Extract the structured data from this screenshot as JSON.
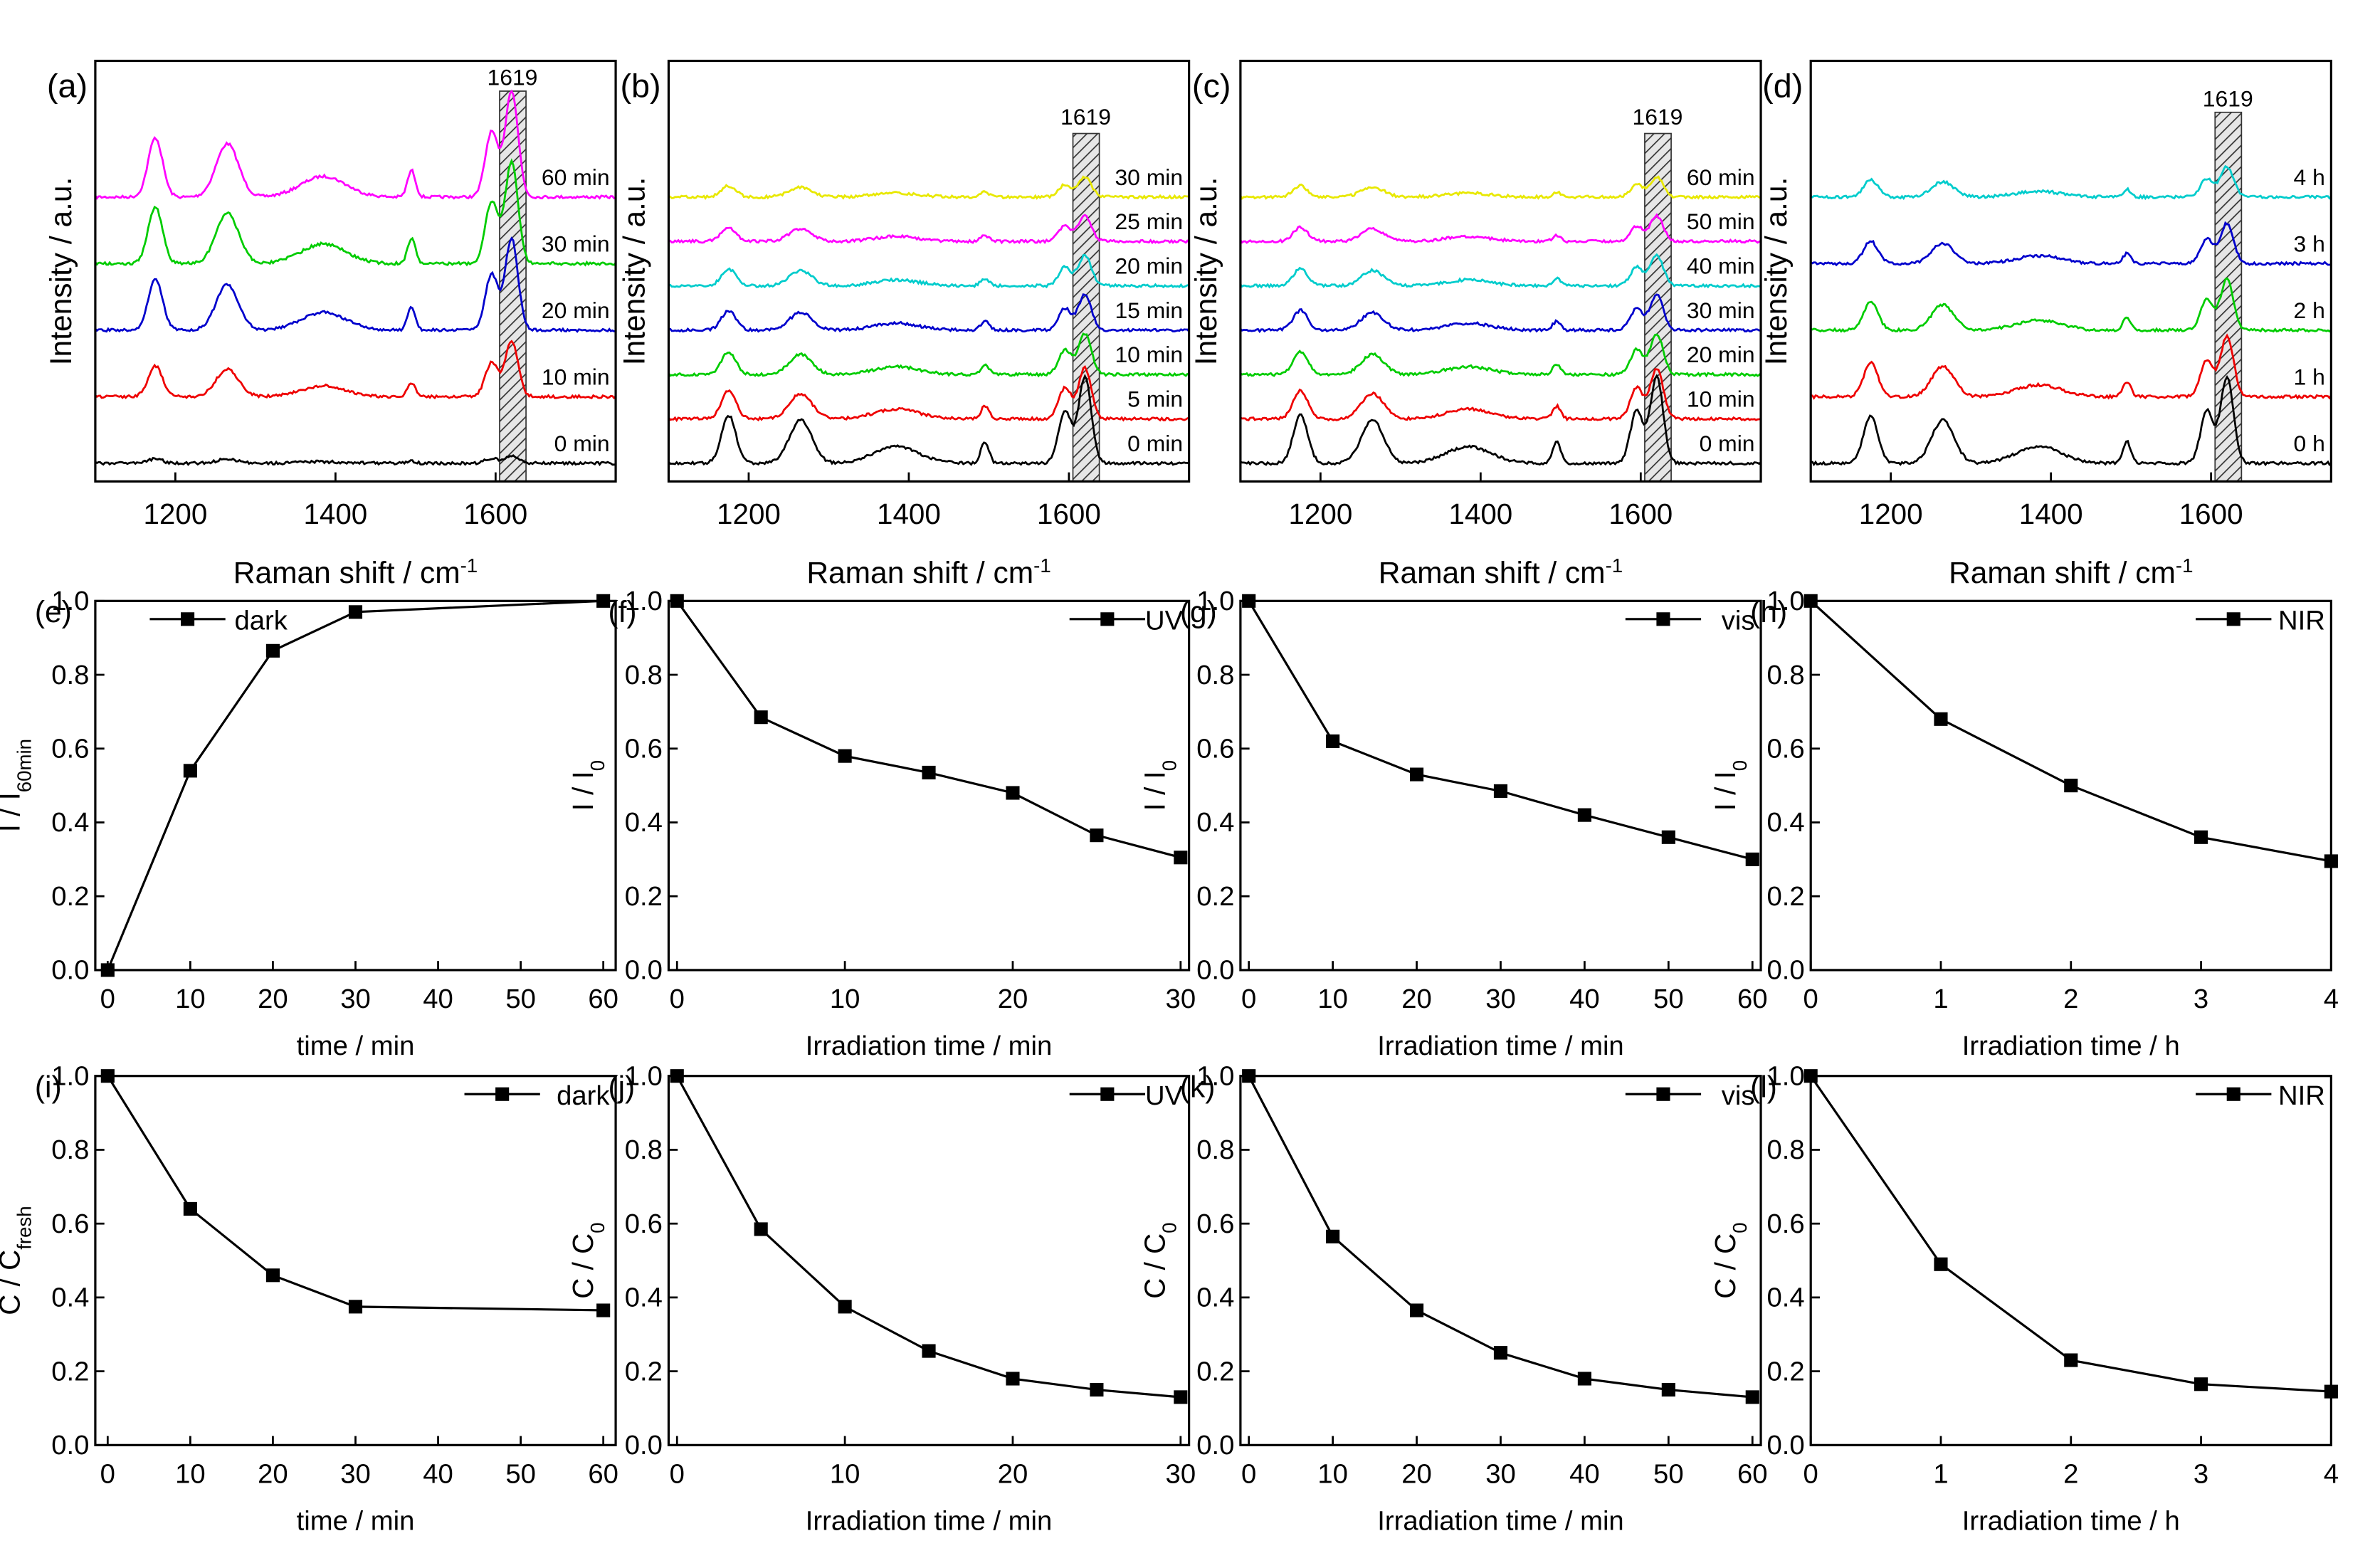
{
  "figure": {
    "raman_panels": [
      {
        "label": "(a)",
        "peak_label": "1619",
        "xlabel": "Raman shift / cm",
        "xlabel_sup": "-1",
        "ylabel": "Intensity / a.u.",
        "xlim": [
          1100,
          1750
        ],
        "xticks": [
          "1200",
          "1400",
          "1600"
        ],
        "curves": [
          {
            "label": "60 min",
            "color": "#ff00ff",
            "peak_scale": 1.0
          },
          {
            "label": "30 min",
            "color": "#00cc00",
            "peak_scale": 0.95
          },
          {
            "label": "20 min",
            "color": "#0000cc",
            "peak_scale": 0.85
          },
          {
            "label": "10 min",
            "color": "#ee0000",
            "peak_scale": 0.5
          },
          {
            "label": "0 min",
            "color": "#000000",
            "peak_scale": 0.03
          }
        ]
      },
      {
        "label": "(b)",
        "peak_label": "1619",
        "xlabel": "Raman shift / cm",
        "xlabel_sup": "-1",
        "ylabel": "Intensity / a.u.",
        "xlim": [
          1100,
          1750
        ],
        "xticks": [
          "1200",
          "1400",
          "1600"
        ],
        "curves": [
          {
            "label": "30 min",
            "color": "#e8e800",
            "peak_scale": 0.15
          },
          {
            "label": "25 min",
            "color": "#ff00ff",
            "peak_scale": 0.2
          },
          {
            "label": "20 min",
            "color": "#00cccc",
            "peak_scale": 0.25
          },
          {
            "label": "15 min",
            "color": "#0000cc",
            "peak_scale": 0.3
          },
          {
            "label": "10 min",
            "color": "#00cc00",
            "peak_scale": 0.35
          },
          {
            "label": "5 min",
            "color": "#ee0000",
            "peak_scale": 0.45
          },
          {
            "label": "0 min",
            "color": "#000000",
            "peak_scale": 0.8
          }
        ]
      },
      {
        "label": "(c)",
        "peak_label": "1619",
        "xlabel": "Raman shift / cm",
        "xlabel_sup": "-1",
        "ylabel": "Intensity / a.u.",
        "xlim": [
          1100,
          1750
        ],
        "xticks": [
          "1200",
          "1400",
          "1600"
        ],
        "curves": [
          {
            "label": "60 min",
            "color": "#e8e800",
            "peak_scale": 0.15
          },
          {
            "label": "50 min",
            "color": "#ff00ff",
            "peak_scale": 0.2
          },
          {
            "label": "40 min",
            "color": "#00cccc",
            "peak_scale": 0.25
          },
          {
            "label": "30 min",
            "color": "#0000cc",
            "peak_scale": 0.3
          },
          {
            "label": "20 min",
            "color": "#00cc00",
            "peak_scale": 0.35
          },
          {
            "label": "10 min",
            "color": "#ee0000",
            "peak_scale": 0.45
          },
          {
            "label": "0 min",
            "color": "#000000",
            "peak_scale": 0.8
          }
        ]
      },
      {
        "label": "(d)",
        "peak_label": "1619",
        "xlabel": "Raman shift / cm",
        "xlabel_sup": "-1",
        "ylabel": "Intensity / a.u.",
        "xlim": [
          1100,
          1750
        ],
        "xticks": [
          "1200",
          "1400",
          "1600"
        ],
        "curves": [
          {
            "label": "4 h",
            "color": "#00cccc",
            "peak_scale": 0.25
          },
          {
            "label": "3 h",
            "color": "#0000cc",
            "peak_scale": 0.35
          },
          {
            "label": "2 h",
            "color": "#00cc00",
            "peak_scale": 0.45
          },
          {
            "label": "1 h",
            "color": "#ee0000",
            "peak_scale": 0.55
          },
          {
            "label": "0 h",
            "color": "#000000",
            "peak_scale": 0.8
          }
        ]
      }
    ]
  },
  "chart_data": [
    {
      "type": "line",
      "panel": "(e)",
      "legend": "dark",
      "x": [
        0,
        10,
        20,
        30,
        60
      ],
      "y": [
        0.0,
        0.54,
        0.865,
        0.97,
        1.0
      ],
      "xticks": [
        "0",
        "10",
        "20",
        "30",
        "40",
        "50",
        "60"
      ],
      "xlim": [
        -1.5,
        61.5
      ],
      "ylim": [
        0,
        1.0
      ],
      "yticks": [
        "0.0",
        "0.2",
        "0.4",
        "0.6",
        "0.8",
        "1.0"
      ],
      "xlabel": "time / min",
      "ylabel": "I / I",
      "ylabel_sub": "60min"
    },
    {
      "type": "line",
      "panel": "(f)",
      "legend": "UV",
      "x": [
        0,
        5,
        10,
        15,
        20,
        25,
        30
      ],
      "y": [
        1.0,
        0.685,
        0.58,
        0.535,
        0.48,
        0.365,
        0.305
      ],
      "xticks": [
        "0",
        "10",
        "20",
        "30"
      ],
      "xlim": [
        -0.5,
        30.5
      ],
      "ylim": [
        0,
        1.0
      ],
      "yticks": [
        "0.0",
        "0.2",
        "0.4",
        "0.6",
        "0.8",
        "1.0"
      ],
      "xlabel": "Irradiation time / min",
      "ylabel": "I / I",
      "ylabel_sub": "0"
    },
    {
      "type": "line",
      "panel": "(g)",
      "legend": "vis",
      "x": [
        0,
        10,
        20,
        30,
        40,
        50,
        60
      ],
      "y": [
        1.0,
        0.62,
        0.53,
        0.485,
        0.42,
        0.36,
        0.3
      ],
      "xticks": [
        "0",
        "10",
        "20",
        "30",
        "40",
        "50",
        "60"
      ],
      "xlim": [
        -1,
        61
      ],
      "ylim": [
        0,
        1.0
      ],
      "yticks": [
        "0.0",
        "0.2",
        "0.4",
        "0.6",
        "0.8",
        "1.0"
      ],
      "xlabel": "Irradiation time / min",
      "ylabel": "I / I",
      "ylabel_sub": "0"
    },
    {
      "type": "line",
      "panel": "(h)",
      "legend": "NIR",
      "x": [
        0,
        1,
        2,
        3,
        4
      ],
      "y": [
        1.0,
        0.68,
        0.5,
        0.36,
        0.295
      ],
      "xticks": [
        "0",
        "1",
        "2",
        "3",
        "4"
      ],
      "xlim": [
        0,
        4
      ],
      "ylim": [
        0,
        1.0
      ],
      "yticks": [
        "0.0",
        "0.2",
        "0.4",
        "0.6",
        "0.8",
        "1.0"
      ],
      "xlabel": "Irradiation time / h",
      "ylabel": "I / I",
      "ylabel_sub": "0"
    },
    {
      "type": "line",
      "panel": "(i)",
      "legend": "dark",
      "x": [
        0,
        10,
        20,
        30,
        60
      ],
      "y": [
        1.0,
        0.64,
        0.46,
        0.375,
        0.365
      ],
      "xticks": [
        "0",
        "10",
        "20",
        "30",
        "40",
        "50",
        "60"
      ],
      "xlim": [
        -1.5,
        61.5
      ],
      "ylim": [
        0,
        1.0
      ],
      "yticks": [
        "0.0",
        "0.2",
        "0.4",
        "0.6",
        "0.8",
        "1.0"
      ],
      "xlabel": "time / min",
      "ylabel": "C / C",
      "ylabel_sub": "fresh"
    },
    {
      "type": "line",
      "panel": "(j)",
      "legend": "UV",
      "x": [
        0,
        5,
        10,
        15,
        20,
        25,
        30
      ],
      "y": [
        1.0,
        0.585,
        0.375,
        0.255,
        0.18,
        0.15,
        0.13
      ],
      "xticks": [
        "0",
        "10",
        "20",
        "30"
      ],
      "xlim": [
        -0.5,
        30.5
      ],
      "ylim": [
        0,
        1.0
      ],
      "yticks": [
        "0.0",
        "0.2",
        "0.4",
        "0.6",
        "0.8",
        "1.0"
      ],
      "xlabel": "Irradiation time / min",
      "ylabel": "C / C",
      "ylabel_sub": "0"
    },
    {
      "type": "line",
      "panel": "(k)",
      "legend": "vis",
      "x": [
        0,
        10,
        20,
        30,
        40,
        50,
        60
      ],
      "y": [
        1.0,
        0.565,
        0.365,
        0.25,
        0.18,
        0.15,
        0.13
      ],
      "xticks": [
        "0",
        "10",
        "20",
        "30",
        "40",
        "50",
        "60"
      ],
      "xlim": [
        -1,
        61
      ],
      "ylim": [
        0,
        1.0
      ],
      "yticks": [
        "0.0",
        "0.2",
        "0.4",
        "0.6",
        "0.8",
        "1.0"
      ],
      "xlabel": "Irradiation time / min",
      "ylabel": "C / C",
      "ylabel_sub": "0"
    },
    {
      "type": "line",
      "panel": "(l)",
      "legend": "NIR",
      "x": [
        0,
        1,
        2,
        3,
        4
      ],
      "y": [
        1.0,
        0.49,
        0.23,
        0.165,
        0.145
      ],
      "xticks": [
        "0",
        "1",
        "2",
        "3",
        "4"
      ],
      "xlim": [
        0,
        4
      ],
      "ylim": [
        0,
        1.0
      ],
      "yticks": [
        "0.0",
        "0.2",
        "0.4",
        "0.6",
        "0.8",
        "1.0"
      ],
      "xlabel": "Irradiation time / h",
      "ylabel": "C / C",
      "ylabel_sub": "0"
    }
  ]
}
